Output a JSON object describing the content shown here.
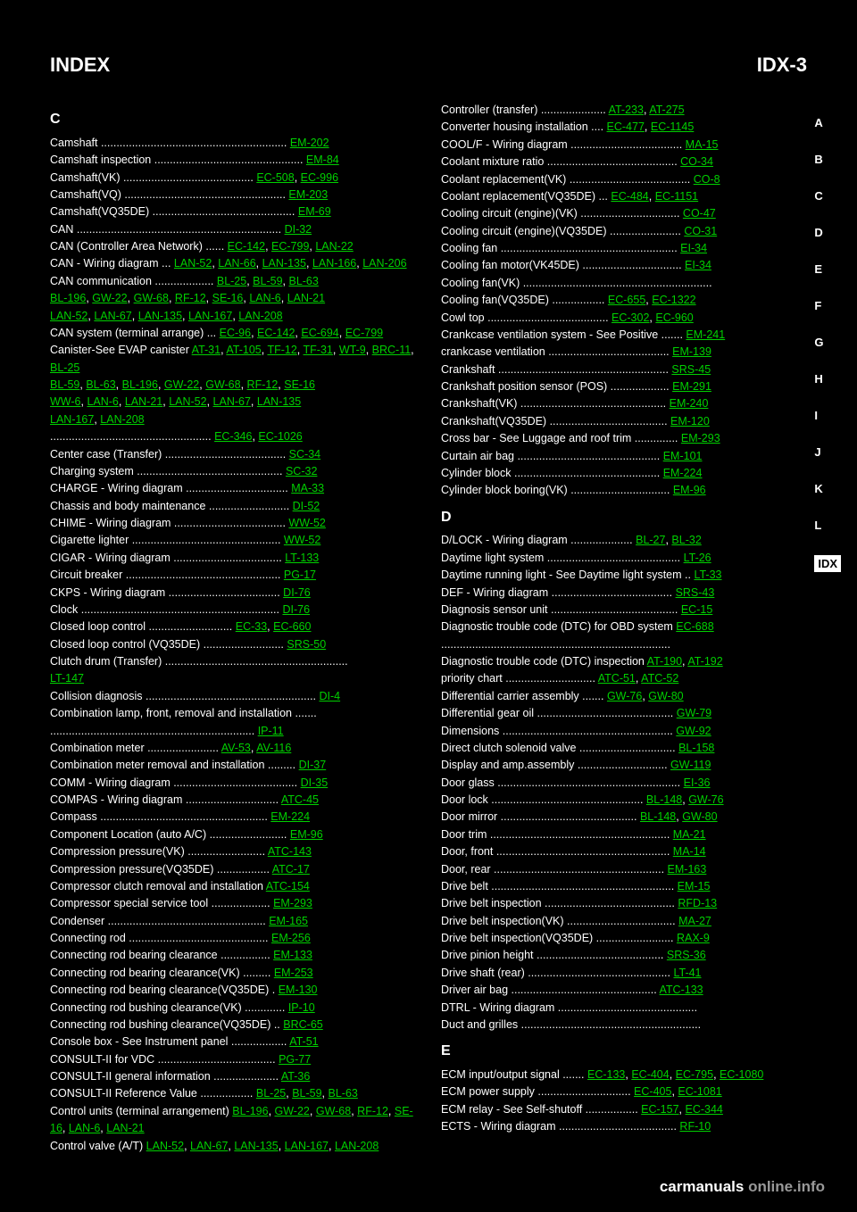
{
  "header": {
    "left": "INDEX",
    "right": "IDX-3"
  },
  "tabs": [
    "A",
    "B",
    "C",
    "D",
    "E",
    "F",
    "G",
    "H",
    "I",
    "J",
    "K",
    "L",
    "IDX"
  ],
  "active_tab": "IDX",
  "footer": {
    "black": "carmanuals",
    "grey": "online.info"
  },
  "col1": [
    {
      "t": "C",
      "bold": true
    },
    {
      "t": "Camshaft ............................................................ ",
      "l": [
        "EM-202"
      ]
    },
    {
      "t": "Camshaft inspection ................................................ ",
      "l": [
        "EM-84"
      ]
    },
    {
      "t": "Camshaft(VK) .......................................... ",
      "l": [
        "EC-508",
        "EC-996"
      ]
    },
    {
      "t": "Camshaft(VQ) .................................................... ",
      "l": [
        "EM-203"
      ]
    },
    {
      "t": "Camshaft(VQ35DE) .............................................. ",
      "l": [
        "EM-69"
      ]
    },
    {
      "t": "CAN .................................................................. ",
      "l": [
        "DI-32"
      ]
    },
    {
      "t": "CAN (Controller Area Network) ...... ",
      "l": [
        "EC-142",
        "EC-799",
        "LAN-22"
      ]
    },
    {
      "t": "CAN - Wiring diagram ... ",
      "l": [
        "LAN-52",
        "LAN-66",
        "LAN-135",
        "LAN-166",
        "LAN-206"
      ]
    },
    {
      "t": "CAN communication ................... ",
      "l": [
        "BL-25",
        "BL-59",
        "BL-63"
      ]
    },
    {
      "p": "",
      "l": [
        "BL-196",
        "GW-22",
        "GW-68",
        "RF-12",
        "SE-16",
        "LAN-6",
        "LAN-21"
      ]
    },
    {
      "p": "",
      "l": [
        "LAN-52",
        "LAN-67",
        "LAN-135",
        "LAN-167",
        "LAN-208"
      ]
    },
    {
      "t": "CAN system (terminal arrange) ... ",
      "l": [
        "EC-96",
        "EC-142",
        "EC-694",
        "EC-799"
      ]
    },
    {
      "t": "Canister-See EVAP canister ",
      "l": [
        "AT-31",
        "AT-105",
        "TF-12",
        "TF-31",
        "WT-9",
        "BRC-11",
        "BL-25"
      ]
    },
    {
      "p": "",
      "l": [
        "BL-59",
        "BL-63",
        "BL-196",
        "GW-22",
        "GW-68",
        "RF-12",
        "SE-16"
      ]
    },
    {
      "p": "",
      "l": [
        "WW-6",
        "LAN-6",
        "LAN-21",
        "LAN-52",
        "LAN-67",
        "LAN-135"
      ]
    },
    {
      "p": "",
      "l": [
        "LAN-167",
        "LAN-208"
      ]
    },
    {
      "t": ".................................................... ",
      "l": [
        "EC-346",
        "EC-1026"
      ]
    },
    {
      "t": "Center case (Transfer) ....................................... ",
      "l": [
        "SC-34"
      ]
    },
    {
      "t": "Charging system ............................................... ",
      "l": [
        "SC-32"
      ]
    },
    {
      "t": "CHARGE - Wiring diagram ................................. ",
      "l": [
        "MA-33"
      ]
    },
    {
      "t": "Chassis and body maintenance .......................... ",
      "l": [
        "DI-52"
      ]
    },
    {
      "t": "CHIME - Wiring diagram .................................... ",
      "l": [
        "WW-52"
      ]
    },
    {
      "t": "Cigarette lighter ................................................ ",
      "l": [
        "WW-52"
      ]
    },
    {
      "t": "CIGAR - Wiring diagram ................................... ",
      "l": [
        "LT-133"
      ]
    },
    {
      "t": "Circuit breaker .................................................. ",
      "l": [
        "PG-17"
      ]
    },
    {
      "t": "CKPS - Wiring diagram .................................... ",
      "l": [
        "DI-76"
      ]
    },
    {
      "t": "Clock ................................................................ ",
      "l": [
        "DI-76"
      ]
    },
    {
      "t": "Closed loop control ........................... ",
      "l": [
        "EC-33",
        "EC-660"
      ]
    },
    {
      "t": "Closed loop control (VQ35DE) .......................... ",
      "l": [
        "SRS-50"
      ]
    },
    {
      "t": "Clutch drum (Transfer) ...........................................................",
      "l": []
    },
    {
      "t": "",
      "l": [
        "LT-147"
      ]
    },
    {
      "t": "Collision diagnosis ....................................................... ",
      "l": [
        "DI-4"
      ]
    },
    {
      "t": "Combination lamp, front, removal and installation .......",
      "l": []
    },
    {
      "t": ".................................................................. ",
      "l": [
        "IP-11"
      ]
    },
    {
      "t": "Combination meter ....................... ",
      "l": [
        "AV-53",
        "AV-116"
      ]
    },
    {
      "t": "Combination meter removal and installation ......... ",
      "l": [
        "DI-37"
      ]
    },
    {
      "t": "COMM - Wiring diagram ........................................ ",
      "l": [
        "DI-35"
      ]
    },
    {
      "t": "COMPAS - Wiring diagram .............................. ",
      "l": [
        "ATC-45"
      ]
    },
    {
      "t": "Compass ...................................................... ",
      "l": [
        "EM-224"
      ]
    },
    {
      "t": "Component Location (auto A/C) ......................... ",
      "l": [
        "EM-96"
      ]
    },
    {
      "t": "Compression pressure(VK) ......................... ",
      "l": [
        "ATC-143"
      ]
    },
    {
      "t": "Compression pressure(VQ35DE) ................. ",
      "l": [
        "ATC-17"
      ]
    },
    {
      "t": "Compressor clutch removal and installation ",
      "l": [
        "ATC-154"
      ]
    },
    {
      "t": "Compressor special service tool ................... ",
      "l": [
        "EM-293"
      ]
    },
    {
      "t": "Condenser ................................................... ",
      "l": [
        "EM-165"
      ]
    },
    {
      "t": "Connecting rod ............................................. ",
      "l": [
        "EM-256"
      ]
    },
    {
      "t": "Connecting rod bearing clearance ................ ",
      "l": [
        "EM-133"
      ]
    },
    {
      "t": "Connecting rod bearing clearance(VK) ......... ",
      "l": [
        "EM-253"
      ]
    },
    {
      "t": "Connecting rod bearing clearance(VQ35DE) . ",
      "l": [
        "EM-130"
      ]
    },
    {
      "t": "Connecting rod bushing clearance(VK) ............. ",
      "l": [
        "IP-10"
      ]
    },
    {
      "t": "Connecting rod bushing clearance(VQ35DE) .. ",
      "l": [
        "BRC-65"
      ]
    },
    {
      "t": "Console box - See Instrument panel .................. ",
      "l": [
        "AT-51"
      ]
    },
    {
      "t": "CONSULT-II for VDC ...................................... ",
      "l": [
        "PG-77"
      ]
    },
    {
      "t": "CONSULT-II general information ..................... ",
      "l": [
        "AT-36"
      ]
    },
    {
      "t": "CONSULT-II Reference Value ................. ",
      "l": [
        "BL-25",
        "BL-59",
        "BL-63"
      ]
    },
    {
      "p": "Control units (terminal arrangement) ",
      "l": [
        "BL-196",
        "GW-22",
        "GW-68",
        "RF-12",
        "SE-16",
        "LAN-6",
        "LAN-21"
      ]
    },
    {
      "p": "Control valve (A/T) ",
      "l": [
        "LAN-52",
        "LAN-67",
        "LAN-135",
        "LAN-167",
        "LAN-208"
      ]
    }
  ],
  "col2": [
    {
      "t": "Controller (transfer) ..................... ",
      "l": [
        "AT-233",
        "AT-275"
      ]
    },
    {
      "t": "Converter housing installation .... ",
      "l": [
        "EC-477",
        "EC-1145"
      ]
    },
    {
      "t": "COOL/F - Wiring diagram .................................... ",
      "l": [
        "MA-15"
      ]
    },
    {
      "t": "Coolant mixture ratio .......................................... ",
      "l": [
        "CO-34"
      ]
    },
    {
      "t": "Coolant replacement(VK) ....................................... ",
      "l": [
        "CO-8"
      ]
    },
    {
      "t": "Coolant replacement(VQ35DE) ... ",
      "l": [
        "EC-484",
        "EC-1151"
      ]
    },
    {
      "t": "Cooling circuit (engine)(VK) ................................ ",
      "l": [
        "CO-47"
      ]
    },
    {
      "t": "Cooling circuit (engine)(VQ35DE) ....................... ",
      "l": [
        "CO-31"
      ]
    },
    {
      "t": "Cooling fan ......................................................... ",
      "l": [
        "EI-34"
      ]
    },
    {
      "t": "Cooling fan motor(VK45DE) ................................ ",
      "l": [
        "EI-34"
      ]
    },
    {
      "t": "Cooling fan(VK) ............................................................. ",
      "l": []
    },
    {
      "t": "Cooling fan(VQ35DE) ................. ",
      "l": [
        "EC-655",
        "EC-1322"
      ]
    },
    {
      "t": "Cowl top ....................................... ",
      "l": [
        "EC-302",
        "EC-960"
      ]
    },
    {
      "t": "Crankcase ventilation system - See Positive ....... ",
      "l": [
        "EM-241"
      ]
    },
    {
      "t": "crankcase ventilation ....................................... ",
      "l": [
        "EM-139"
      ]
    },
    {
      "t": "Crankshaft ....................................................... ",
      "l": [
        "SRS-45"
      ]
    },
    {
      "t": "Crankshaft position sensor (POS) ................... ",
      "l": [
        "EM-291"
      ]
    },
    {
      "t": "Crankshaft(VK) ............................................... ",
      "l": [
        "EM-240"
      ]
    },
    {
      "t": "Crankshaft(VQ35DE) ...................................... ",
      "l": [
        "EM-120"
      ]
    },
    {
      "t": "Cross bar - See Luggage and roof trim .............. ",
      "l": [
        "EM-293"
      ]
    },
    {
      "t": "Curtain air bag .............................................. ",
      "l": [
        "EM-101"
      ]
    },
    {
      "t": "Cylinder block ............................................... ",
      "l": [
        "EM-224"
      ]
    },
    {
      "t": "Cylinder block boring(VK) ................................ ",
      "l": [
        "EM-96"
      ]
    },
    {
      "t": "",
      "l": []
    },
    {
      "t": "D",
      "bold": true
    },
    {
      "t": "D/LOCK - Wiring diagram .................... ",
      "l": [
        "BL-27",
        "BL-32"
      ]
    },
    {
      "t": "Daytime light system ........................................... ",
      "l": [
        "LT-26"
      ]
    },
    {
      "t": "Daytime running light - See Daytime light system .. ",
      "l": [
        "LT-33"
      ]
    },
    {
      "t": "DEF - Wiring diagram ....................................... ",
      "l": [
        "SRS-43"
      ]
    },
    {
      "t": "Diagnosis sensor unit ......................................... ",
      "l": [
        "EC-15"
      ]
    },
    {
      "t": "Diagnostic trouble code (DTC) for OBD system ",
      "l": [
        "EC-688"
      ]
    },
    {
      "t": ".......................................................................... ",
      "l": []
    },
    {
      "t": "Diagnostic trouble code (DTC) inspection ",
      "l": [
        "AT-190",
        "AT-192"
      ]
    },
    {
      "t": "priority chart ............................. ",
      "l": [
        "ATC-51",
        "ATC-52"
      ]
    },
    {
      "t": "Differential carrier assembly ....... ",
      "l": [
        "GW-76",
        "GW-80"
      ]
    },
    {
      "t": "Differential gear oil ............................................ ",
      "l": [
        "GW-79"
      ]
    },
    {
      "t": "Dimensions ....................................................... ",
      "l": [
        "GW-92"
      ]
    },
    {
      "t": "Direct clutch solenoid valve ............................... ",
      "l": [
        "BL-158"
      ]
    },
    {
      "t": "Display and amp.assembly ............................. ",
      "l": [
        "GW-119"
      ]
    },
    {
      "t": "Door glass ........................................................... ",
      "l": [
        "EI-36"
      ]
    },
    {
      "t": "Door lock ................................................. ",
      "l": [
        "BL-148",
        "GW-76"
      ]
    },
    {
      "t": "Door mirror ............................................ ",
      "l": [
        "BL-148",
        "GW-80"
      ]
    },
    {
      "t": "Door trim .......................................................... ",
      "l": [
        "MA-21"
      ]
    },
    {
      "t": "Door, front ........................................................ ",
      "l": [
        "MA-14"
      ]
    },
    {
      "t": "Door, rear ....................................................... ",
      "l": [
        "EM-163"
      ]
    },
    {
      "t": "Drive belt ........................................................... ",
      "l": [
        "EM-15"
      ]
    },
    {
      "t": "Drive belt inspection .......................................... ",
      "l": [
        "RFD-13"
      ]
    },
    {
      "t": "Drive belt inspection(VK) ................................... ",
      "l": [
        "MA-27"
      ]
    },
    {
      "t": "Drive belt inspection(VQ35DE) ......................... ",
      "l": [
        "RAX-9"
      ]
    },
    {
      "t": "Drive pinion height ......................................... ",
      "l": [
        "SRS-36"
      ]
    },
    {
      "t": "Drive shaft (rear) .............................................. ",
      "l": [
        "LT-41"
      ]
    },
    {
      "t": "Driver air bag ............................................... ",
      "l": [
        "ATC-133"
      ]
    },
    {
      "t": "DTRL - Wiring diagram ............................................. ",
      "l": []
    },
    {
      "t": "Duct and grilles .......................................................... ",
      "l": []
    },
    {
      "t": "",
      "l": []
    },
    {
      "t": "E",
      "bold": true
    },
    {
      "t": "ECM input/output signal ....... ",
      "l": [
        "EC-133",
        "EC-404",
        "EC-795",
        "EC-1080"
      ]
    },
    {
      "t": "ECM power supply .............................. ",
      "l": [
        "EC-405",
        "EC-1081"
      ]
    },
    {
      "t": "ECM relay - See Self-shutoff ................. ",
      "l": [
        "EC-157",
        "EC-344"
      ]
    },
    {
      "t": "ECTS - Wiring diagram ...................................... ",
      "l": [
        "RF-10"
      ]
    }
  ]
}
